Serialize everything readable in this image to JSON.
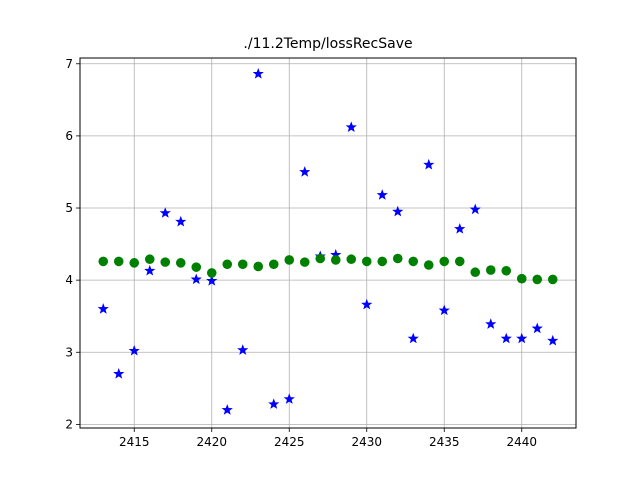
{
  "chart_data": {
    "type": "scatter",
    "title": "./11.2Temp/lossRecSave",
    "xlabel": "",
    "ylabel": "",
    "xlim": [
      2411.5,
      2443.5
    ],
    "ylim": [
      1.95,
      7.08
    ],
    "grid": true,
    "x_ticks": [
      2415,
      2420,
      2425,
      2430,
      2435,
      2440
    ],
    "y_ticks": [
      2,
      3,
      4,
      5,
      6,
      7
    ],
    "series": [
      {
        "marker": "star",
        "color": "#0000ff",
        "points": [
          [
            2413,
            3.6
          ],
          [
            2414,
            2.7
          ],
          [
            2415,
            3.02
          ],
          [
            2416,
            4.13
          ],
          [
            2417,
            4.93
          ],
          [
            2418,
            4.81
          ],
          [
            2419,
            4.01
          ],
          [
            2420,
            3.99
          ],
          [
            2421,
            2.2
          ],
          [
            2422,
            3.03
          ],
          [
            2423,
            6.86
          ],
          [
            2424,
            2.28
          ],
          [
            2425,
            2.35
          ],
          [
            2426,
            5.5
          ],
          [
            2427,
            4.33
          ],
          [
            2428,
            4.35
          ],
          [
            2429,
            6.12
          ],
          [
            2430,
            3.66
          ],
          [
            2431,
            5.18
          ],
          [
            2432,
            4.95
          ],
          [
            2433,
            3.19
          ],
          [
            2434,
            5.6
          ],
          [
            2435,
            3.58
          ],
          [
            2436,
            4.71
          ],
          [
            2437,
            4.98
          ],
          [
            2438,
            3.39
          ],
          [
            2439,
            3.19
          ],
          [
            2440,
            3.19
          ],
          [
            2441,
            3.33
          ],
          [
            2442,
            3.16
          ]
        ]
      },
      {
        "marker": "circle",
        "color": "#008000",
        "points": [
          [
            2413,
            4.26
          ],
          [
            2414,
            4.26
          ],
          [
            2415,
            4.24
          ],
          [
            2416,
            4.29
          ],
          [
            2417,
            4.25
          ],
          [
            2418,
            4.24
          ],
          [
            2419,
            4.18
          ],
          [
            2420,
            4.1
          ],
          [
            2421,
            4.22
          ],
          [
            2422,
            4.22
          ],
          [
            2423,
            4.19
          ],
          [
            2424,
            4.22
          ],
          [
            2425,
            4.28
          ],
          [
            2426,
            4.25
          ],
          [
            2427,
            4.3
          ],
          [
            2428,
            4.28
          ],
          [
            2429,
            4.29
          ],
          [
            2430,
            4.26
          ],
          [
            2431,
            4.26
          ],
          [
            2432,
            4.3
          ],
          [
            2433,
            4.26
          ],
          [
            2434,
            4.21
          ],
          [
            2435,
            4.26
          ],
          [
            2436,
            4.26
          ],
          [
            2437,
            4.11
          ],
          [
            2438,
            4.14
          ],
          [
            2439,
            4.13
          ],
          [
            2440,
            4.02
          ],
          [
            2441,
            4.01
          ],
          [
            2442,
            4.01
          ]
        ]
      }
    ]
  }
}
